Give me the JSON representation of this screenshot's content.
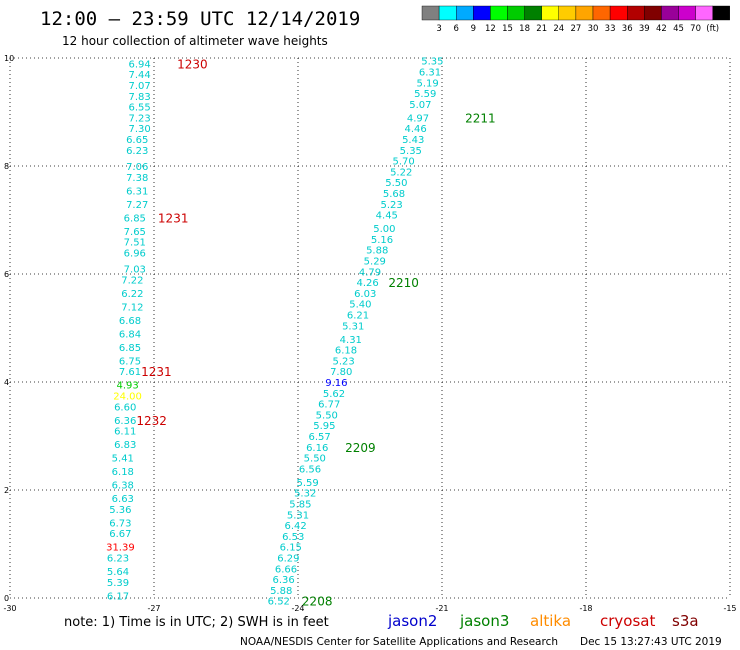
{
  "header": {
    "title": "12:00 – 23:59 UTC 12/14/2019",
    "subtitle": "12 hour collection of altimeter wave heights"
  },
  "legend_scale": {
    "colors": [
      "#808080",
      "#00ffff",
      "#00aaff",
      "#0000ff",
      "#00ff00",
      "#00cc00",
      "#008000",
      "#ffff00",
      "#ffcc00",
      "#ffa500",
      "#ff6600",
      "#ff0000",
      "#b20000",
      "#800000",
      "#990099",
      "#cc00cc",
      "#ff66ff",
      "#000000"
    ],
    "labels": [
      "3",
      "6",
      "9",
      "12",
      "15",
      "18",
      "21",
      "24",
      "27",
      "30",
      "33",
      "36",
      "39",
      "42",
      "45",
      "70",
      "(ft)"
    ]
  },
  "footer": {
    "note": "note: 1) Time is in UTC; 2) SWH is in feet",
    "satellites": [
      {
        "name": "jason2",
        "color": "#0000cc"
      },
      {
        "name": "jason3",
        "color": "#008000"
      },
      {
        "name": "altika",
        "color": "#ff8c00"
      },
      {
        "name": "cryosat",
        "color": "#cc0000"
      },
      {
        "name": "s3a",
        "color": "#800000"
      }
    ],
    "credit": "NOAA/NESDIS Center for Satellite Applications and Research",
    "timestamp": "Dec 15 13:27:43 UTC 2019"
  },
  "chart_data": {
    "type": "scatter",
    "xlim": [
      -30,
      -15
    ],
    "ylim": [
      0,
      10
    ],
    "xticks": [
      -30,
      -27,
      -24,
      -21,
      -18,
      -15
    ],
    "yticks": [
      0,
      2,
      4,
      6,
      8,
      10
    ],
    "grid": true,
    "swh_points": [
      {
        "x": -27.3,
        "y": 9.9,
        "v": "6.94",
        "c": "#00cccc"
      },
      {
        "x": -27.3,
        "y": 9.7,
        "v": "7.44",
        "c": "#00cccc"
      },
      {
        "x": -27.3,
        "y": 9.5,
        "v": "7.07",
        "c": "#00cccc"
      },
      {
        "x": -27.3,
        "y": 9.3,
        "v": "7.83",
        "c": "#00cccc"
      },
      {
        "x": -27.3,
        "y": 9.1,
        "v": "6.55",
        "c": "#00cccc"
      },
      {
        "x": -27.3,
        "y": 8.9,
        "v": "7.23",
        "c": "#00cccc"
      },
      {
        "x": -27.3,
        "y": 8.7,
        "v": "7.30",
        "c": "#00cccc"
      },
      {
        "x": -27.35,
        "y": 8.5,
        "v": "6.65",
        "c": "#00cccc"
      },
      {
        "x": -27.35,
        "y": 8.3,
        "v": "6.23",
        "c": "#00cccc"
      },
      {
        "x": -27.35,
        "y": 8.0,
        "v": "7.06",
        "c": "#00cccc"
      },
      {
        "x": -27.35,
        "y": 7.8,
        "v": "7.38",
        "c": "#00cccc"
      },
      {
        "x": -27.35,
        "y": 7.55,
        "v": "6.31",
        "c": "#00cccc"
      },
      {
        "x": -27.35,
        "y": 7.3,
        "v": "7.27",
        "c": "#00cccc"
      },
      {
        "x": -27.4,
        "y": 7.05,
        "v": "6.85",
        "c": "#00cccc"
      },
      {
        "x": -27.4,
        "y": 6.8,
        "v": "7.65",
        "c": "#00cccc"
      },
      {
        "x": -27.4,
        "y": 6.6,
        "v": "7.51",
        "c": "#00cccc"
      },
      {
        "x": -27.4,
        "y": 6.4,
        "v": "6.96",
        "c": "#00cccc"
      },
      {
        "x": -27.4,
        "y": 6.1,
        "v": "7.03",
        "c": "#00cccc"
      },
      {
        "x": -27.45,
        "y": 5.9,
        "v": "7.22",
        "c": "#00cccc"
      },
      {
        "x": -27.45,
        "y": 5.65,
        "v": "6.22",
        "c": "#00cccc"
      },
      {
        "x": -27.45,
        "y": 5.4,
        "v": "7.12",
        "c": "#00cccc"
      },
      {
        "x": -27.5,
        "y": 5.15,
        "v": "6.68",
        "c": "#00cccc"
      },
      {
        "x": -27.5,
        "y": 4.9,
        "v": "6.84",
        "c": "#00cccc"
      },
      {
        "x": -27.5,
        "y": 4.65,
        "v": "6.85",
        "c": "#00cccc"
      },
      {
        "x": -27.5,
        "y": 4.4,
        "v": "6.75",
        "c": "#00cccc"
      },
      {
        "x": -27.5,
        "y": 4.2,
        "v": "7.61",
        "c": "#00cccc"
      },
      {
        "x": -27.55,
        "y": 3.95,
        "v": "4.93",
        "c": "#00cc00"
      },
      {
        "x": -27.55,
        "y": 3.75,
        "v": "24.00",
        "c": "#ffff00"
      },
      {
        "x": -27.6,
        "y": 3.55,
        "v": "6.60",
        "c": "#00cccc"
      },
      {
        "x": -27.6,
        "y": 3.3,
        "v": "6.36",
        "c": "#00cccc"
      },
      {
        "x": -27.6,
        "y": 3.1,
        "v": "6.11",
        "c": "#00cccc"
      },
      {
        "x": -27.6,
        "y": 2.85,
        "v": "6.83",
        "c": "#00cccc"
      },
      {
        "x": -27.65,
        "y": 2.6,
        "v": "5.41",
        "c": "#00cccc"
      },
      {
        "x": -27.65,
        "y": 2.35,
        "v": "6.18",
        "c": "#00cccc"
      },
      {
        "x": -27.65,
        "y": 2.1,
        "v": "6.38",
        "c": "#00cccc"
      },
      {
        "x": -27.65,
        "y": 1.85,
        "v": "6.63",
        "c": "#00cccc"
      },
      {
        "x": -27.7,
        "y": 1.65,
        "v": "5.36",
        "c": "#00cccc"
      },
      {
        "x": -27.7,
        "y": 1.4,
        "v": "6.73",
        "c": "#00cccc"
      },
      {
        "x": -27.7,
        "y": 1.2,
        "v": "6.67",
        "c": "#00cccc"
      },
      {
        "x": -27.7,
        "y": 0.95,
        "v": "31.39",
        "c": "#ff0000"
      },
      {
        "x": -27.75,
        "y": 0.75,
        "v": "6.23",
        "c": "#00cccc"
      },
      {
        "x": -27.75,
        "y": 0.5,
        "v": "5.64",
        "c": "#00cccc"
      },
      {
        "x": -27.75,
        "y": 0.3,
        "v": "5.39",
        "c": "#00cccc"
      },
      {
        "x": -27.75,
        "y": 0.05,
        "v": "6.17",
        "c": "#00cccc"
      },
      {
        "x": -21.2,
        "y": 9.95,
        "v": "5.35",
        "c": "#00cccc"
      },
      {
        "x": -21.25,
        "y": 9.75,
        "v": "6.31",
        "c": "#00cccc"
      },
      {
        "x": -21.3,
        "y": 9.55,
        "v": "5.19",
        "c": "#00cccc"
      },
      {
        "x": -21.35,
        "y": 9.35,
        "v": "5.59",
        "c": "#00cccc"
      },
      {
        "x": -21.45,
        "y": 9.15,
        "v": "5.07",
        "c": "#00cccc"
      },
      {
        "x": -21.5,
        "y": 8.9,
        "v": "4.97",
        "c": "#00cccc"
      },
      {
        "x": -21.55,
        "y": 8.7,
        "v": "4.46",
        "c": "#00cccc"
      },
      {
        "x": -21.6,
        "y": 8.5,
        "v": "5.43",
        "c": "#00cccc"
      },
      {
        "x": -21.65,
        "y": 8.3,
        "v": "5.35",
        "c": "#00cccc"
      },
      {
        "x": -21.8,
        "y": 8.1,
        "v": "5.70",
        "c": "#00cccc"
      },
      {
        "x": -21.85,
        "y": 7.9,
        "v": "5.22",
        "c": "#00cccc"
      },
      {
        "x": -21.95,
        "y": 7.7,
        "v": "5.50",
        "c": "#00cccc"
      },
      {
        "x": -22.0,
        "y": 7.5,
        "v": "5.68",
        "c": "#00cccc"
      },
      {
        "x": -22.05,
        "y": 7.3,
        "v": "5.23",
        "c": "#00cccc"
      },
      {
        "x": -22.15,
        "y": 7.1,
        "v": "4.45",
        "c": "#00cccc"
      },
      {
        "x": -22.2,
        "y": 6.85,
        "v": "5.00",
        "c": "#00cccc"
      },
      {
        "x": -22.25,
        "y": 6.65,
        "v": "5.16",
        "c": "#00cccc"
      },
      {
        "x": -22.35,
        "y": 6.45,
        "v": "5.88",
        "c": "#00cccc"
      },
      {
        "x": -22.4,
        "y": 6.25,
        "v": "5.29",
        "c": "#00cccc"
      },
      {
        "x": -22.5,
        "y": 6.05,
        "v": "4.79",
        "c": "#00cccc"
      },
      {
        "x": -22.55,
        "y": 5.85,
        "v": "4.26",
        "c": "#00cccc"
      },
      {
        "x": -22.6,
        "y": 5.65,
        "v": "6.03",
        "c": "#00cccc"
      },
      {
        "x": -22.7,
        "y": 5.45,
        "v": "5.40",
        "c": "#00cccc"
      },
      {
        "x": -22.75,
        "y": 5.25,
        "v": "6.21",
        "c": "#00cccc"
      },
      {
        "x": -22.85,
        "y": 5.05,
        "v": "5.31",
        "c": "#00cccc"
      },
      {
        "x": -22.9,
        "y": 4.8,
        "v": "4.31",
        "c": "#00cccc"
      },
      {
        "x": -23.0,
        "y": 4.6,
        "v": "6.18",
        "c": "#00cccc"
      },
      {
        "x": -23.05,
        "y": 4.4,
        "v": "5.23",
        "c": "#00cccc"
      },
      {
        "x": -23.1,
        "y": 4.2,
        "v": "7.80",
        "c": "#00cccc"
      },
      {
        "x": -23.2,
        "y": 4.0,
        "v": "9.16",
        "c": "#0000ff"
      },
      {
        "x": -23.25,
        "y": 3.8,
        "v": "5.62",
        "c": "#00cccc"
      },
      {
        "x": -23.35,
        "y": 3.6,
        "v": "6.77",
        "c": "#00cccc"
      },
      {
        "x": -23.4,
        "y": 3.4,
        "v": "5.50",
        "c": "#00cccc"
      },
      {
        "x": -23.45,
        "y": 3.2,
        "v": "5.95",
        "c": "#00cccc"
      },
      {
        "x": -23.55,
        "y": 3.0,
        "v": "6.57",
        "c": "#00cccc"
      },
      {
        "x": -23.6,
        "y": 2.8,
        "v": "6.16",
        "c": "#00cccc"
      },
      {
        "x": -23.65,
        "y": 2.6,
        "v": "5.50",
        "c": "#00cccc"
      },
      {
        "x": -23.75,
        "y": 2.4,
        "v": "6.56",
        "c": "#00cccc"
      },
      {
        "x": -23.8,
        "y": 2.15,
        "v": "5.59",
        "c": "#00cccc"
      },
      {
        "x": -23.85,
        "y": 1.95,
        "v": "5.32",
        "c": "#00cccc"
      },
      {
        "x": -23.95,
        "y": 1.75,
        "v": "5.85",
        "c": "#00cccc"
      },
      {
        "x": -24.0,
        "y": 1.55,
        "v": "5.31",
        "c": "#00cccc"
      },
      {
        "x": -24.05,
        "y": 1.35,
        "v": "6.42",
        "c": "#00cccc"
      },
      {
        "x": -24.1,
        "y": 1.15,
        "v": "6.53",
        "c": "#00cccc"
      },
      {
        "x": -24.15,
        "y": 0.95,
        "v": "6.15",
        "c": "#00cccc"
      },
      {
        "x": -24.2,
        "y": 0.75,
        "v": "6.29",
        "c": "#00cccc"
      },
      {
        "x": -24.25,
        "y": 0.55,
        "v": "6.66",
        "c": "#00cccc"
      },
      {
        "x": -24.3,
        "y": 0.35,
        "v": "6.36",
        "c": "#00cccc"
      },
      {
        "x": -24.35,
        "y": 0.15,
        "v": "5.88",
        "c": "#00cccc"
      },
      {
        "x": -24.4,
        "y": -0.05,
        "v": "6.52",
        "c": "#00cccc"
      }
    ],
    "pass_labels": [
      {
        "x": -26.2,
        "y": 9.9,
        "v": "1230",
        "c": "#cc0000"
      },
      {
        "x": -26.6,
        "y": 7.05,
        "v": "1231",
        "c": "#cc0000"
      },
      {
        "x": -26.95,
        "y": 4.2,
        "v": "1231",
        "c": "#cc0000"
      },
      {
        "x": -27.05,
        "y": 3.3,
        "v": "1232",
        "c": "#cc0000"
      },
      {
        "x": -20.2,
        "y": 8.9,
        "v": "2211",
        "c": "#008000"
      },
      {
        "x": -21.8,
        "y": 5.85,
        "v": "2210",
        "c": "#008000"
      },
      {
        "x": -22.7,
        "y": 2.8,
        "v": "2209",
        "c": "#008000"
      },
      {
        "x": -23.6,
        "y": -0.05,
        "v": "2208",
        "c": "#008000"
      }
    ]
  }
}
